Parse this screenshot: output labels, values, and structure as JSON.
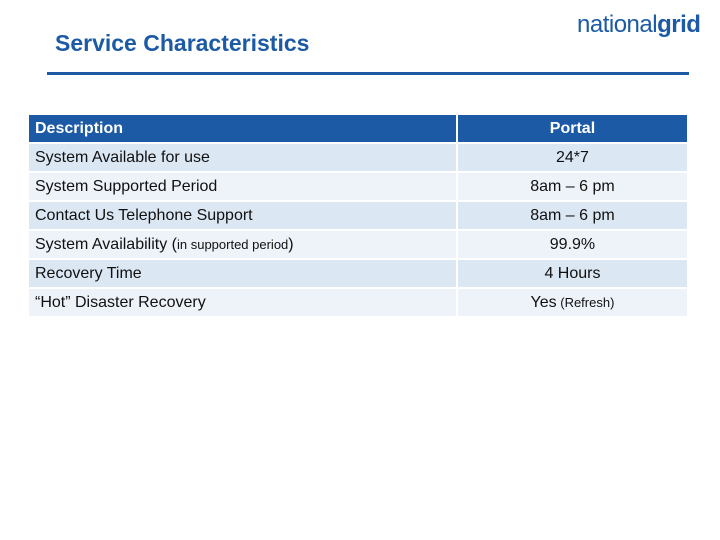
{
  "header": {
    "title": "Service Characteristics",
    "logo_light": "national",
    "logo_bold": "grid"
  },
  "table": {
    "headers": [
      "Description",
      "Portal"
    ],
    "rows": [
      {
        "description": "System Available for use",
        "desc_note": "",
        "value": "24*7",
        "value_note": ""
      },
      {
        "description": "System Supported Period",
        "desc_note": "",
        "value": "8am – 6 pm",
        "value_note": ""
      },
      {
        "description": "Contact Us Telephone Support",
        "desc_note": "",
        "value": "8am – 6 pm",
        "value_note": ""
      },
      {
        "description": "System Availability (",
        "desc_note": "in supported period",
        "desc_tail": ")",
        "value": "99.9%",
        "value_note": ""
      },
      {
        "description": "Recovery Time",
        "desc_note": "",
        "value": "4 Hours",
        "value_note": ""
      },
      {
        "description": "“Hot” Disaster Recovery",
        "desc_note": "",
        "value": "Yes",
        "value_note": " (Refresh)"
      }
    ]
  },
  "colors": {
    "brand_blue": "#1c5aa5",
    "row_odd": "#dce7f4",
    "row_even": "#eef3fa"
  }
}
